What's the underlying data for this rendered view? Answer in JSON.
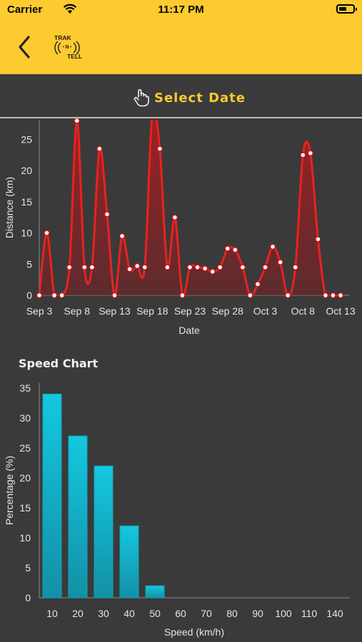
{
  "status_bar": {
    "carrier": "Carrier",
    "time": "11:17 PM"
  },
  "header": {
    "logo_text_top": "TRAK",
    "logo_text_mid": "N",
    "logo_text_bottom": "TELL",
    "accent_color": "#fdca2f"
  },
  "select_date": {
    "label": "Select Date",
    "icon": "hand-pointer-icon"
  },
  "distance_chart": {
    "chart_data": {
      "type": "area",
      "xlabel": "Date",
      "ylabel": "Distance (km)",
      "ylim": [
        0,
        28
      ],
      "yticks": [
        0,
        5,
        10,
        15,
        20,
        25
      ],
      "xticks": [
        "Sep 3",
        "Sep 8",
        "Sep 13",
        "Sep 18",
        "Sep 23",
        "Sep 28",
        "Oct 3",
        "Oct 8",
        "Oct 13"
      ],
      "x_start": "Sep 3",
      "line_color": "#e8221f",
      "values": [
        0,
        10,
        0,
        0,
        4.5,
        28,
        4.5,
        4.5,
        23.5,
        13,
        0,
        9.5,
        4.2,
        4.7,
        4.5,
        29,
        23.5,
        4.5,
        12.5,
        0,
        4.5,
        4.5,
        4.3,
        3.8,
        4.5,
        7.5,
        7.3,
        4.5,
        0,
        1.8,
        4.5,
        7.8,
        5.3,
        0,
        4.5,
        22.5,
        22.8,
        9,
        0,
        0,
        0
      ]
    }
  },
  "speed_chart": {
    "title": "Speed Chart",
    "chart_data": {
      "type": "bar",
      "xlabel": "Speed (km/h)",
      "ylabel": "Percentage (%)",
      "ylim": [
        0,
        35
      ],
      "yticks": [
        0,
        5,
        10,
        15,
        20,
        25,
        30,
        35
      ],
      "categories": [
        "10",
        "20",
        "30",
        "40",
        "50",
        "60",
        "70",
        "80",
        "90",
        "100",
        "110",
        "140"
      ],
      "values": [
        34,
        27,
        22,
        12,
        2,
        0,
        0,
        0,
        0,
        0,
        0,
        0
      ],
      "bar_color": "#12bcd4"
    }
  }
}
